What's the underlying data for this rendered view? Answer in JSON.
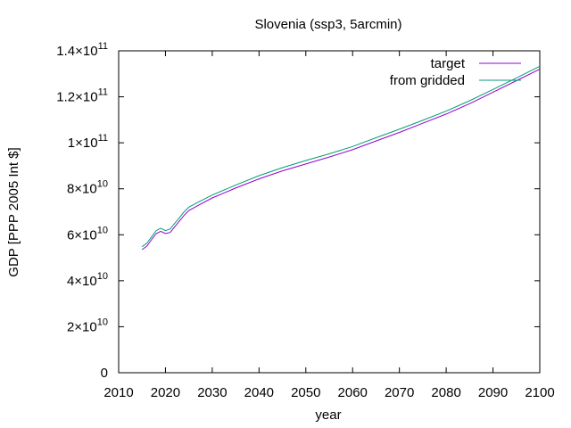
{
  "chart_data": {
    "type": "line",
    "title": "Slovenia (ssp3, 5arcmin)",
    "xlabel": "year",
    "ylabel": "GDP [PPP 2005 Int $]",
    "xlim": [
      2010,
      2100
    ],
    "ylim": [
      0,
      140000000000
    ],
    "x_ticks": [
      2010,
      2020,
      2030,
      2040,
      2050,
      2060,
      2070,
      2080,
      2090,
      2100
    ],
    "x_tick_labels": [
      "2010",
      "2020",
      "2030",
      "2040",
      "2050",
      "2060",
      "2070",
      "2080",
      "2090",
      "2100"
    ],
    "y_ticks": [
      {
        "value": 0,
        "mantissa": "0",
        "exponent": ""
      },
      {
        "value": 20000000000,
        "mantissa": "2×10",
        "exponent": "10"
      },
      {
        "value": 40000000000,
        "mantissa": "4×10",
        "exponent": "10"
      },
      {
        "value": 60000000000,
        "mantissa": "6×10",
        "exponent": "10"
      },
      {
        "value": 80000000000,
        "mantissa": "8×10",
        "exponent": "10"
      },
      {
        "value": 100000000000,
        "mantissa": "1×10",
        "exponent": "11"
      },
      {
        "value": 120000000000,
        "mantissa": "1.2×10",
        "exponent": "11"
      },
      {
        "value": 140000000000,
        "mantissa": "1.4×10",
        "exponent": "11"
      }
    ],
    "grid": false,
    "legend_position": "top-right",
    "series": [
      {
        "name": "target",
        "color": "#9400d3",
        "points": [
          [
            2015,
            53500000000.0
          ],
          [
            2016,
            55000000000.0
          ],
          [
            2017,
            57800000000.0
          ],
          [
            2018,
            60500000000.0
          ],
          [
            2019,
            61500000000.0
          ],
          [
            2020,
            60500000000.0
          ],
          [
            2021,
            61000000000.0
          ],
          [
            2022,
            63500000000.0
          ],
          [
            2023,
            66000000000.0
          ],
          [
            2024,
            68500000000.0
          ],
          [
            2025,
            70500000000.0
          ],
          [
            2027,
            72800000000.0
          ],
          [
            2030,
            76000000000.0
          ],
          [
            2035,
            80300000000.0
          ],
          [
            2040,
            84300000000.0
          ],
          [
            2045,
            87800000000.0
          ],
          [
            2050,
            90800000000.0
          ],
          [
            2055,
            93800000000.0
          ],
          [
            2060,
            97000000000.0
          ],
          [
            2065,
            100800000000.0
          ],
          [
            2070,
            104500000000.0
          ],
          [
            2075,
            108500000000.0
          ],
          [
            2080,
            112500000000.0
          ],
          [
            2085,
            117000000000.0
          ],
          [
            2090,
            122000000000.0
          ],
          [
            2095,
            127000000000.0
          ],
          [
            2100,
            132000000000.0
          ]
        ]
      },
      {
        "name": "from gridded",
        "color": "#009e73",
        "points": [
          [
            2015,
            54800000000.0
          ],
          [
            2016,
            56300000000.0
          ],
          [
            2017,
            59000000000.0
          ],
          [
            2018,
            61800000000.0
          ],
          [
            2019,
            62800000000.0
          ],
          [
            2020,
            61800000000.0
          ],
          [
            2021,
            62500000000.0
          ],
          [
            2022,
            65000000000.0
          ],
          [
            2023,
            67500000000.0
          ],
          [
            2024,
            70000000000.0
          ],
          [
            2025,
            72000000000.0
          ],
          [
            2027,
            74200000000.0
          ],
          [
            2030,
            77300000000.0
          ],
          [
            2035,
            81600000000.0
          ],
          [
            2040,
            85700000000.0
          ],
          [
            2045,
            89200000000.0
          ],
          [
            2050,
            92300000000.0
          ],
          [
            2055,
            95200000000.0
          ],
          [
            2060,
            98400000000.0
          ],
          [
            2065,
            102200000000.0
          ],
          [
            2070,
            105900000000.0
          ],
          [
            2075,
            109800000000.0
          ],
          [
            2080,
            113800000000.0
          ],
          [
            2085,
            118300000000.0
          ],
          [
            2090,
            123200000000.0
          ],
          [
            2095,
            128200000000.0
          ],
          [
            2100,
            133300000000.0
          ]
        ]
      }
    ]
  }
}
